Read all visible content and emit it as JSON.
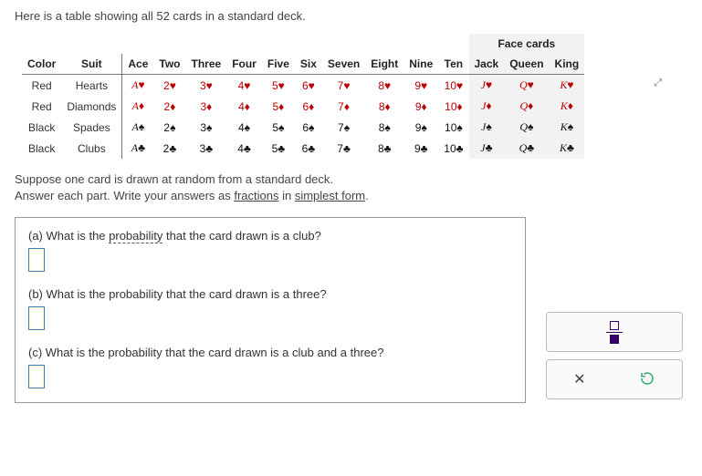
{
  "intro": "Here is a table showing all 52 cards in a standard deck.",
  "headers": {
    "color": "Color",
    "suit": "Suit",
    "face": "Face cards",
    "ranks": [
      "Ace",
      "Two",
      "Three",
      "Four",
      "Five",
      "Six",
      "Seven",
      "Eight",
      "Nine",
      "Ten",
      "Jack",
      "Queen",
      "King"
    ]
  },
  "rows": [
    {
      "color": "Red",
      "suit": "Hearts",
      "sym": "♥",
      "cls": "red-suit"
    },
    {
      "color": "Red",
      "suit": "Diamonds",
      "sym": "♦",
      "cls": "red-suit"
    },
    {
      "color": "Black",
      "suit": "Spades",
      "sym": "♠",
      "cls": "black-suit"
    },
    {
      "color": "Black",
      "suit": "Clubs",
      "sym": "♣",
      "cls": "black-suit"
    }
  ],
  "rankLabels": [
    "A",
    "2",
    "3",
    "4",
    "5",
    "6",
    "7",
    "8",
    "9",
    "10",
    "J",
    "Q",
    "K"
  ],
  "faceStart": 10,
  "instructions": {
    "l1": "Suppose one card is drawn at random from a standard deck.",
    "l2a": "Answer each part. Write your answers as ",
    "l2b": "fractions",
    "l2c": " in ",
    "l2d": "simplest form",
    "l2e": "."
  },
  "questions": {
    "a_pre": "(a) What is the ",
    "a_u": "probability",
    "a_post": " that the card drawn is a club?",
    "b": "(b) What is the probability that the card drawn is a three?",
    "c": "(c) What is the probability that the card drawn is a club and a three?"
  },
  "colors": {
    "red": "#b00",
    "black": "#111",
    "border": "#999",
    "faceBg": "#f2f2f2"
  }
}
